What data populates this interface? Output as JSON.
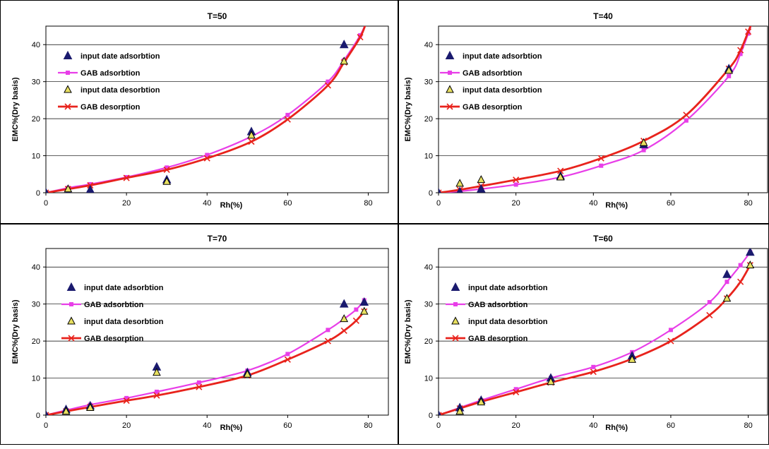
{
  "colors": {
    "adsorption_marker": "#1a1a6e",
    "gab_adsorption": "#e83ee8",
    "desorption_marker_fill": "#e8e060",
    "gab_desorption": "#e8231c",
    "gridline": "#000000",
    "plot_bg": "#ffffff"
  },
  "chart_data": [
    {
      "type": "scatter",
      "title": "T=50",
      "xlabel": "Rh(%)",
      "ylabel": "EMC%(Dry basis)",
      "xlim": [
        0,
        85
      ],
      "ylim": [
        0,
        45
      ],
      "xticks": [
        "0",
        "20",
        "40",
        "60",
        "80"
      ],
      "yticks": [
        "0",
        "10",
        "20",
        "30",
        "40"
      ],
      "grid": "horizontal",
      "legend_position": "upper-left",
      "series": [
        {
          "name": "input date adsorbtion",
          "kind": "marker",
          "marker": "filled-triangle",
          "points": [
            [
              0,
              0
            ],
            [
              5.5,
              0.2
            ],
            [
              11,
              0.8
            ],
            [
              30,
              3.5
            ],
            [
              51,
              16.5
            ],
            [
              74,
              40
            ]
          ]
        },
        {
          "name": "GAB adsorbtion",
          "kind": "line",
          "marker": "square",
          "points": [
            [
              0,
              0
            ],
            [
              5.5,
              1.3
            ],
            [
              11,
              2.3
            ],
            [
              20,
              4.2
            ],
            [
              30,
              6.8
            ],
            [
              40,
              10.2
            ],
            [
              51,
              15.2
            ],
            [
              60,
              21
            ],
            [
              70,
              30
            ],
            [
              74,
              35.8
            ],
            [
              78,
              42.5
            ],
            [
              79.5,
              46
            ]
          ]
        },
        {
          "name": "input data desorbtion",
          "kind": "marker",
          "marker": "open-triangle",
          "points": [
            [
              5.5,
              1
            ],
            [
              30,
              3
            ],
            [
              51,
              15.5
            ],
            [
              74,
              35.5
            ]
          ]
        },
        {
          "name": "GAB desorption",
          "kind": "line",
          "marker": "x",
          "points": [
            [
              0,
              0
            ],
            [
              5.5,
              1
            ],
            [
              11,
              2
            ],
            [
              20,
              4
            ],
            [
              30,
              6.2
            ],
            [
              40,
              9.3
            ],
            [
              51,
              13.8
            ],
            [
              60,
              19.8
            ],
            [
              70,
              29
            ],
            [
              74,
              35.2
            ],
            [
              78,
              42
            ],
            [
              79.5,
              46
            ]
          ]
        }
      ]
    },
    {
      "type": "scatter",
      "title": "T=40",
      "xlabel": "Rh(%)",
      "ylabel": "EMC%(Dry basis)",
      "xlim": [
        0,
        85
      ],
      "ylim": [
        0,
        45
      ],
      "xticks": [
        "0",
        "20",
        "40",
        "60",
        "80"
      ],
      "yticks": [
        "0",
        "10",
        "20",
        "30",
        "40"
      ],
      "grid": "horizontal",
      "legend_position": "upper-left",
      "series": [
        {
          "name": "input date adsorbtion",
          "kind": "marker",
          "marker": "filled-triangle",
          "points": [
            [
              0,
              0
            ],
            [
              5.5,
              0.3
            ],
            [
              11,
              1
            ],
            [
              31.5,
              4.5
            ],
            [
              53,
              13
            ],
            [
              75,
              33.5
            ]
          ]
        },
        {
          "name": "GAB adsorbtion",
          "kind": "line",
          "marker": "square",
          "points": [
            [
              0,
              0
            ],
            [
              5.5,
              0.4
            ],
            [
              11,
              1
            ],
            [
              20,
              2.2
            ],
            [
              31.5,
              4.2
            ],
            [
              42,
              7.3
            ],
            [
              53,
              11.5
            ],
            [
              64,
              19.5
            ],
            [
              75,
              31.5
            ],
            [
              78,
              37.5
            ],
            [
              80,
              43
            ],
            [
              81,
              46
            ]
          ]
        },
        {
          "name": "input data desorbtion",
          "kind": "marker",
          "marker": "open-triangle",
          "points": [
            [
              5.5,
              2.5
            ],
            [
              11,
              3.5
            ],
            [
              31.5,
              4.2
            ],
            [
              53,
              13.5
            ],
            [
              75,
              33
            ]
          ]
        },
        {
          "name": "GAB desorption",
          "kind": "line",
          "marker": "x",
          "points": [
            [
              0,
              0
            ],
            [
              5.5,
              0.8
            ],
            [
              11,
              1.8
            ],
            [
              20,
              3.5
            ],
            [
              31.5,
              5.9
            ],
            [
              42,
              9.3
            ],
            [
              53,
              14
            ],
            [
              64,
              21
            ],
            [
              75,
              33.5
            ],
            [
              78,
              38.5
            ],
            [
              80,
              43.5
            ],
            [
              81,
              46
            ]
          ]
        }
      ]
    },
    {
      "type": "scatter",
      "title": "T=70",
      "xlabel": "Rh(%)",
      "ylabel": "EMC%(Dry basis)",
      "xlim": [
        0,
        85
      ],
      "ylim": [
        0,
        45
      ],
      "xticks": [
        "0",
        "20",
        "40",
        "60",
        "80"
      ],
      "yticks": [
        "0",
        "10",
        "20",
        "30",
        "40"
      ],
      "grid": "horizontal",
      "legend_position": "upper-left",
      "series": [
        {
          "name": "input date adsorbtion",
          "kind": "marker",
          "marker": "filled-triangle",
          "points": [
            [
              0,
              0
            ],
            [
              5,
              1.5
            ],
            [
              11,
              2.5
            ],
            [
              27.5,
              13
            ],
            [
              50,
              11.5
            ],
            [
              74,
              30
            ],
            [
              79,
              30.5
            ]
          ]
        },
        {
          "name": "GAB adsorbtion",
          "kind": "line",
          "marker": "square",
          "points": [
            [
              0,
              0
            ],
            [
              5,
              1.3
            ],
            [
              11,
              2.8
            ],
            [
              20,
              4.6
            ],
            [
              27.5,
              6.3
            ],
            [
              38,
              8.8
            ],
            [
              50,
              12
            ],
            [
              60,
              16.5
            ],
            [
              70,
              23
            ],
            [
              74,
              26
            ],
            [
              77,
              28.5
            ],
            [
              79,
              31
            ]
          ]
        },
        {
          "name": "input data desorbtion",
          "kind": "marker",
          "marker": "open-triangle",
          "points": [
            [
              5,
              1
            ],
            [
              11,
              2
            ],
            [
              27.5,
              11.5
            ],
            [
              50,
              11
            ],
            [
              74,
              26
            ],
            [
              79,
              28
            ]
          ]
        },
        {
          "name": "GAB desorption",
          "kind": "line",
          "marker": "x",
          "points": [
            [
              0,
              0
            ],
            [
              5,
              1
            ],
            [
              11,
              2.2
            ],
            [
              20,
              3.9
            ],
            [
              27.5,
              5.3
            ],
            [
              38,
              7.6
            ],
            [
              50,
              10.7
            ],
            [
              60,
              15
            ],
            [
              70,
              20
            ],
            [
              74,
              22.8
            ],
            [
              77,
              25.5
            ],
            [
              79,
              28
            ]
          ]
        }
      ]
    },
    {
      "type": "scatter",
      "title": "T=60",
      "xlabel": "Rh(%)",
      "ylabel": "EMC%(Dry basis)",
      "xlim": [
        0,
        85
      ],
      "ylim": [
        0,
        45
      ],
      "xticks": [
        "0",
        "20",
        "40",
        "60",
        "80"
      ],
      "yticks": [
        "0",
        "10",
        "20",
        "30",
        "40"
      ],
      "grid": "horizontal",
      "legend_position": "upper-left",
      "series": [
        {
          "name": "input date adsorbtion",
          "kind": "marker",
          "marker": "filled-triangle",
          "points": [
            [
              0,
              0
            ],
            [
              5.5,
              2
            ],
            [
              11,
              4
            ],
            [
              29,
              10
            ],
            [
              50,
              16
            ],
            [
              74.5,
              38
            ],
            [
              80.5,
              44
            ]
          ]
        },
        {
          "name": "GAB adsorbtion",
          "kind": "line",
          "marker": "square",
          "points": [
            [
              0,
              0
            ],
            [
              5.5,
              2
            ],
            [
              11,
              4
            ],
            [
              20,
              7
            ],
            [
              29,
              10
            ],
            [
              40,
              13
            ],
            [
              50,
              17
            ],
            [
              60,
              23
            ],
            [
              70,
              30.5
            ],
            [
              74.5,
              36
            ],
            [
              78,
              40.5
            ],
            [
              80.5,
              44
            ]
          ]
        },
        {
          "name": "input data desorbtion",
          "kind": "marker",
          "marker": "open-triangle",
          "points": [
            [
              5.5,
              1
            ],
            [
              11,
              3.5
            ],
            [
              29,
              9
            ],
            [
              50,
              15
            ],
            [
              74.5,
              31.5
            ],
            [
              80.5,
              40.5
            ]
          ]
        },
        {
          "name": "GAB desorption",
          "kind": "line",
          "marker": "x",
          "points": [
            [
              0,
              0
            ],
            [
              5.5,
              1.8
            ],
            [
              11,
              3.6
            ],
            [
              20,
              6.2
            ],
            [
              29,
              8.8
            ],
            [
              40,
              11.7
            ],
            [
              50,
              15.2
            ],
            [
              60,
              20
            ],
            [
              70,
              27
            ],
            [
              74.5,
              31.5
            ],
            [
              78,
              36
            ],
            [
              80.5,
              40.5
            ]
          ]
        }
      ]
    }
  ]
}
